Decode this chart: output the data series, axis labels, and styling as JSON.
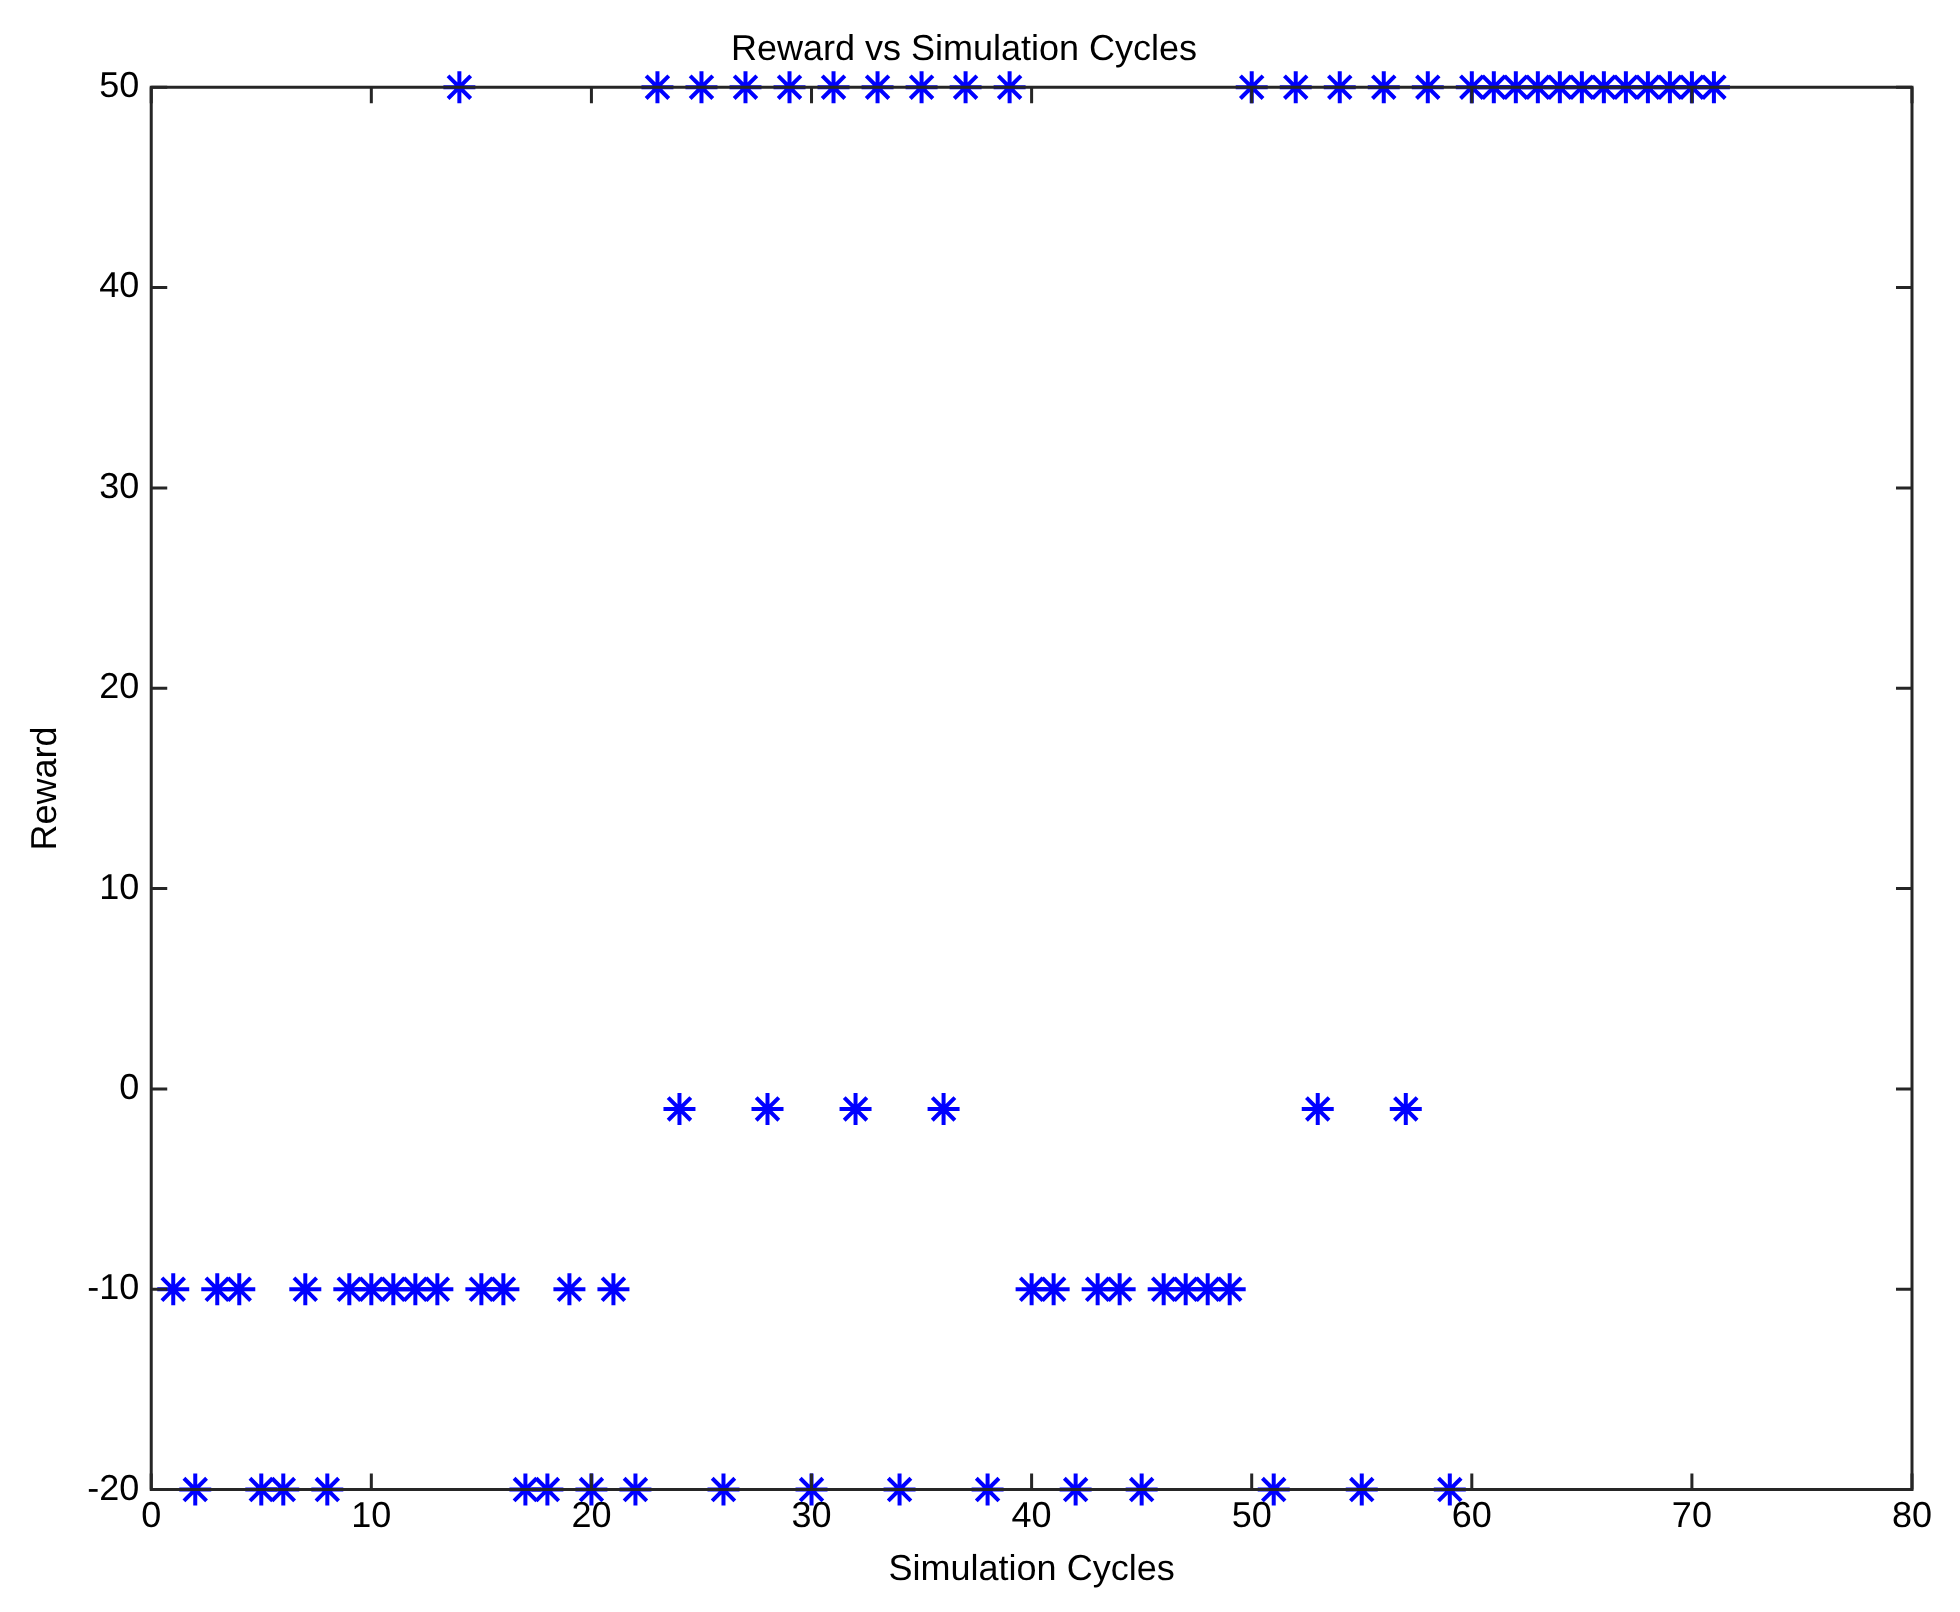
{
  "chart_data": {
    "type": "scatter",
    "title": "Reward vs Simulation Cycles",
    "xlabel": "Simulation Cycles",
    "ylabel": "Reward",
    "x": [
      1,
      2,
      3,
      4,
      5,
      6,
      7,
      8,
      9,
      10,
      11,
      12,
      13,
      14,
      15,
      16,
      17,
      18,
      19,
      20,
      21,
      22,
      23,
      24,
      25,
      26,
      27,
      28,
      29,
      30,
      31,
      32,
      33,
      34,
      35,
      36,
      37,
      38,
      39,
      40,
      41,
      42,
      43,
      44,
      45,
      46,
      47,
      48,
      49,
      50,
      51,
      52,
      53,
      54,
      55,
      56,
      57,
      58,
      59,
      60,
      61,
      62,
      63,
      64,
      65,
      66,
      67,
      68,
      69,
      70,
      71
    ],
    "series": [
      {
        "color": "#0000ff",
        "values": [
          -10,
          -20,
          -10,
          -10,
          -20,
          -20,
          -10,
          -20,
          -10,
          -10,
          -10,
          -10,
          -10,
          50,
          -10,
          -10,
          -20,
          -20,
          -10,
          -20,
          -10,
          -20,
          50,
          -1,
          50,
          -20,
          50,
          -1,
          50,
          -20,
          50,
          -1,
          50,
          -20,
          50,
          -1,
          50,
          -20,
          50,
          -10,
          -10,
          -20,
          -10,
          -10,
          -20,
          -10,
          -10,
          -10,
          -10,
          50,
          -20,
          50,
          -1,
          50,
          -20,
          50,
          -1,
          50,
          -20,
          50,
          50,
          50,
          50,
          50,
          50,
          50,
          50,
          50,
          50,
          50,
          50
        ]
      }
    ],
    "xlim": [
      0,
      80
    ],
    "xticks": [
      0,
      10,
      20,
      30,
      40,
      50,
      60,
      70,
      80
    ],
    "ylim": [
      -20,
      50
    ],
    "yticks": [
      -20,
      -10,
      0,
      10,
      20,
      30,
      40,
      50
    ],
    "grid": false,
    "legend": false,
    "marker": "cross"
  }
}
